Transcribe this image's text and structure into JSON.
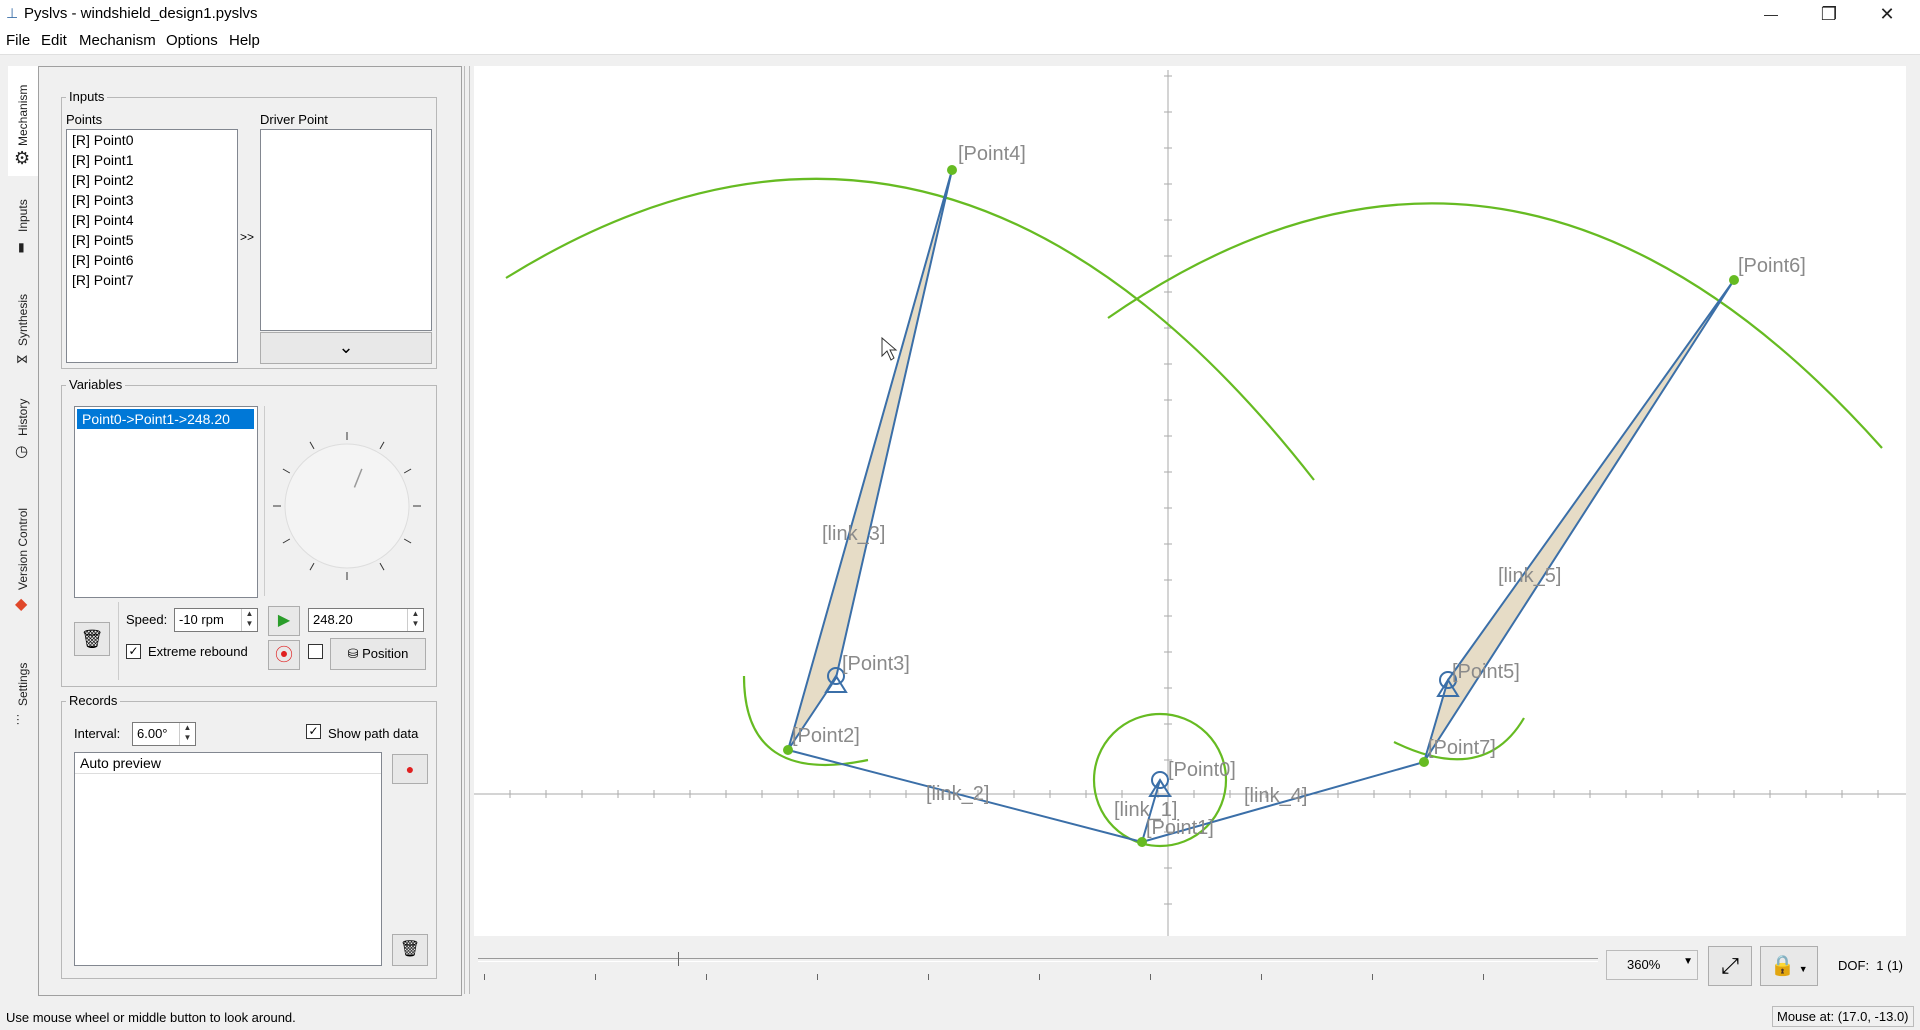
{
  "window": {
    "title": "Pyslvs - windshield_design1.pyslvs",
    "minimize": "—",
    "maximize": "❐",
    "close": "✕"
  },
  "menu": [
    "File",
    "Edit",
    "Mechanism",
    "Options",
    "Help"
  ],
  "side_tabs": [
    "Mechanism",
    "Inputs",
    "Synthesis",
    "History",
    "Version Control",
    "Settings"
  ],
  "inputs": {
    "group_title": "Inputs",
    "points_label": "Points",
    "driver_label": "Driver Point",
    "points": [
      "[R] Point0",
      "[R] Point1",
      "[R] Point2",
      "[R] Point3",
      "[R] Point4",
      "[R] Point5",
      "[R] Point6",
      "[R] Point7"
    ],
    "add_button": ">>",
    "dropdown_icon": "⌄"
  },
  "variables": {
    "group_title": "Variables",
    "items": [
      "Point0->Point1->248.20"
    ],
    "speed_label": "Speed:",
    "speed_value": "-10 rpm",
    "angle_value": "248.20",
    "extreme_label": "Extreme rebound",
    "extreme_checked": "✓",
    "position_button": "Position",
    "dial_angle_deg": 248.2
  },
  "records": {
    "group_title": "Records",
    "interval_label": "Interval:",
    "interval_value": "6.00°",
    "show_path_label": "Show path data",
    "show_path_checked": "✓",
    "items": [
      "Auto preview"
    ]
  },
  "canvas": {
    "points": [
      "[Point0]",
      "[Point1]",
      "[Point2]",
      "[Point3]",
      "[Point4]",
      "[Point5]",
      "[Point6]",
      "[Point7]"
    ],
    "links": [
      "[link_1]",
      "[link_2]",
      "[link_3]",
      "[link_4]",
      "[link_5]"
    ],
    "colors": {
      "link": "#3b6fa8",
      "path": "#66bb22",
      "fill": "#e6dcc6"
    }
  },
  "bottom": {
    "zoom": "360%",
    "dof": "DOF:  1 (1)"
  },
  "status": {
    "message": "Use mouse wheel or middle button to look around.",
    "mouse": "Mouse at: (17.0, -13.0)"
  }
}
